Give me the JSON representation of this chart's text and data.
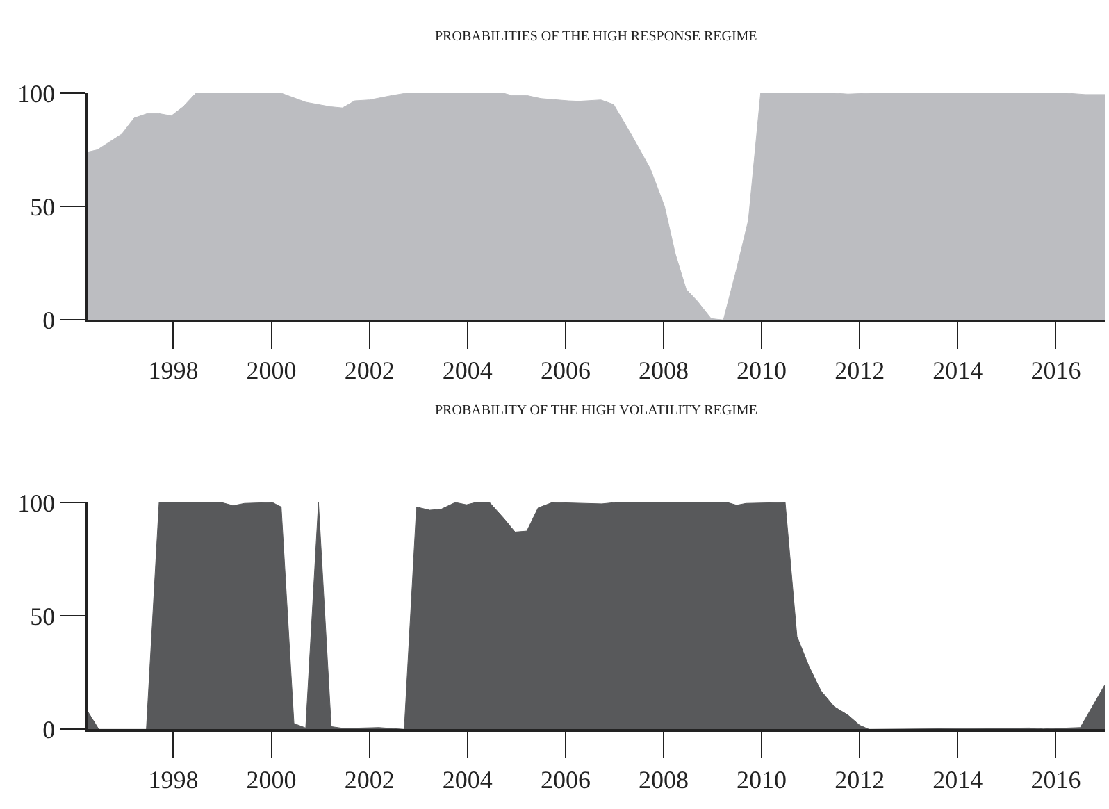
{
  "chart_data": [
    {
      "type": "area",
      "title": "PROBABILITIES OF THE HIGH RESPONSE REGIME",
      "color": "#bcbdc1",
      "x": [
        1996.25,
        1996.45,
        1996.95,
        1997.2,
        1997.47,
        1997.7,
        1997.96,
        1998.2,
        1998.46,
        2000.2,
        2000.7,
        2001.2,
        2001.45,
        2001.7,
        2002.0,
        2002.47,
        2002.75,
        2004.73,
        2004.9,
        2005.2,
        2005.5,
        2006.06,
        2006.27,
        2006.72,
        2006.98,
        2007.36,
        2007.73,
        2008.02,
        2008.24,
        2008.46,
        2008.68,
        2008.97,
        2009.22,
        2009.49,
        2009.73,
        2009.98,
        2011.48,
        2011.76,
        2012.24,
        2016.22,
        2016.6,
        2017.0
      ],
      "values": [
        74,
        75,
        82,
        89,
        91,
        91,
        90,
        94,
        100,
        100,
        96,
        94,
        93.5,
        96.6,
        97,
        99,
        100,
        100,
        99,
        99,
        97.6,
        96.6,
        96.4,
        97,
        95,
        81,
        66.6,
        50,
        29,
        13.5,
        8.5,
        0.6,
        0,
        22.5,
        44,
        100,
        100,
        99.6,
        100,
        100,
        99.4,
        99.4
      ],
      "xlim": [
        1996.25,
        2017.0
      ],
      "ylim": [
        0,
        100
      ],
      "xticks": [
        1998,
        2000,
        2002,
        2004,
        2006,
        2008,
        2010,
        2012,
        2014,
        2016
      ],
      "yticks": [
        0,
        50,
        100
      ]
    },
    {
      "type": "area",
      "title": "PROBABILITY OF THE HIGH VOLATILITY REGIME",
      "color": "#58595b",
      "x": [
        1996.25,
        1996.48,
        1997.45,
        1997.71,
        1998.98,
        1999.22,
        1999.45,
        2000.02,
        2000.2,
        2000.46,
        2000.7,
        2000.96,
        2001.22,
        2001.48,
        2002.19,
        2002.71,
        2002.96,
        2003.23,
        2003.46,
        2003.75,
        2003.98,
        2004.17,
        2004.45,
        2004.74,
        2004.97,
        2005.21,
        2005.44,
        2005.73,
        2006.74,
        2007.02,
        2009.3,
        2009.49,
        2009.68,
        2010.48,
        2010.72,
        2010.96,
        2011.21,
        2011.48,
        2011.76,
        2012.0,
        2012.19,
        2015.46,
        2015.74,
        2016.5,
        2017.0
      ],
      "values": [
        8,
        0,
        0,
        100,
        100,
        98.6,
        99.6,
        100,
        98,
        2.6,
        0.6,
        100,
        1.2,
        0.4,
        0.8,
        0,
        98,
        96.6,
        97,
        100,
        99,
        100,
        100,
        93,
        87,
        87.4,
        97.6,
        100,
        99.4,
        100,
        100,
        98.8,
        99.6,
        100,
        41,
        28,
        17,
        10,
        6.3,
        1.8,
        0,
        0.6,
        0.2,
        0.8,
        19.6
      ],
      "xlim": [
        1996.25,
        2017.0
      ],
      "ylim": [
        0,
        100
      ],
      "xticks": [
        1998,
        2000,
        2002,
        2004,
        2006,
        2008,
        2010,
        2012,
        2014,
        2016
      ],
      "yticks": [
        0,
        50,
        100
      ]
    }
  ]
}
